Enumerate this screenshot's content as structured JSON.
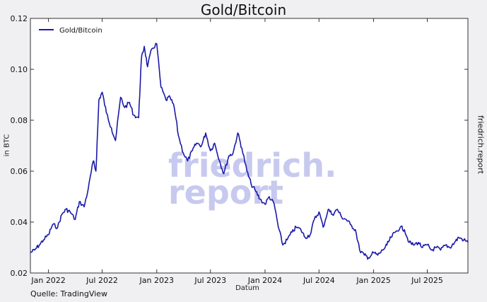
{
  "title": "Gold/Bitcoin",
  "source": "Quelle: TradingView",
  "side_brand": "friedrich.report",
  "watermark": [
    "friedrich.",
    "report"
  ],
  "colors": {
    "line": "#1a1aa8",
    "background": "#f0f0f3",
    "plot_background": "#ffffff",
    "watermark": "#c7c9ef"
  },
  "chart_data": {
    "type": "line",
    "title": "Gold/Bitcoin",
    "xlabel": "Datum",
    "ylabel": "in BTC",
    "ylim": [
      0.02,
      0.12
    ],
    "yticks": [
      0.02,
      0.04,
      0.06,
      0.08,
      0.1,
      0.12
    ],
    "ytick_labels": [
      "0.02",
      "0.04",
      "0.06",
      "0.08",
      "0.10",
      "0.12"
    ],
    "xlim": [
      "2021-11-01",
      "2025-11-15"
    ],
    "xticks": [
      "2022-01-01",
      "2022-07-01",
      "2023-01-01",
      "2023-07-01",
      "2024-01-01",
      "2024-07-01",
      "2025-01-01",
      "2025-07-01"
    ],
    "xtick_labels": [
      "Jan 2022",
      "Jul 2022",
      "Jan 2023",
      "Jul 2023",
      "Jan 2024",
      "Jul 2024",
      "Jan 2025",
      "Jul 2025"
    ],
    "legend_position": "top-left",
    "grid": false,
    "series": [
      {
        "name": "Gold/Bitcoin",
        "color": "#1a1aa8",
        "points": [
          [
            "2021-11-01",
            0.028
          ],
          [
            "2021-11-15",
            0.029
          ],
          [
            "2021-12-01",
            0.031
          ],
          [
            "2021-12-15",
            0.033
          ],
          [
            "2022-01-01",
            0.035
          ],
          [
            "2022-01-15",
            0.039
          ],
          [
            "2022-02-01",
            0.038
          ],
          [
            "2022-02-15",
            0.043
          ],
          [
            "2022-03-01",
            0.045
          ],
          [
            "2022-03-15",
            0.044
          ],
          [
            "2022-04-01",
            0.041
          ],
          [
            "2022-04-15",
            0.048
          ],
          [
            "2022-05-01",
            0.046
          ],
          [
            "2022-05-15",
            0.053
          ],
          [
            "2022-06-01",
            0.064
          ],
          [
            "2022-06-10",
            0.06
          ],
          [
            "2022-06-20",
            0.088
          ],
          [
            "2022-07-01",
            0.091
          ],
          [
            "2022-07-15",
            0.083
          ],
          [
            "2022-08-01",
            0.077
          ],
          [
            "2022-08-15",
            0.072
          ],
          [
            "2022-09-01",
            0.089
          ],
          [
            "2022-09-15",
            0.085
          ],
          [
            "2022-10-01",
            0.087
          ],
          [
            "2022-10-15",
            0.082
          ],
          [
            "2022-11-01",
            0.081
          ],
          [
            "2022-11-10",
            0.104
          ],
          [
            "2022-11-20",
            0.109
          ],
          [
            "2022-12-01",
            0.101
          ],
          [
            "2022-12-15",
            0.108
          ],
          [
            "2023-01-01",
            0.11
          ],
          [
            "2023-01-15",
            0.093
          ],
          [
            "2023-02-01",
            0.088
          ],
          [
            "2023-02-15",
            0.089
          ],
          [
            "2023-03-01",
            0.085
          ],
          [
            "2023-03-15",
            0.074
          ],
          [
            "2023-04-01",
            0.067
          ],
          [
            "2023-04-15",
            0.064
          ],
          [
            "2023-05-01",
            0.068
          ],
          [
            "2023-05-15",
            0.071
          ],
          [
            "2023-06-01",
            0.07
          ],
          [
            "2023-06-15",
            0.075
          ],
          [
            "2023-07-01",
            0.068
          ],
          [
            "2023-07-15",
            0.071
          ],
          [
            "2023-08-01",
            0.064
          ],
          [
            "2023-08-15",
            0.059
          ],
          [
            "2023-09-01",
            0.066
          ],
          [
            "2023-09-15",
            0.067
          ],
          [
            "2023-10-01",
            0.075
          ],
          [
            "2023-10-15",
            0.069
          ],
          [
            "2023-11-01",
            0.06
          ],
          [
            "2023-11-15",
            0.055
          ],
          [
            "2023-12-01",
            0.052
          ],
          [
            "2023-12-15",
            0.049
          ],
          [
            "2024-01-01",
            0.047
          ],
          [
            "2024-01-15",
            0.05
          ],
          [
            "2024-02-01",
            0.047
          ],
          [
            "2024-02-15",
            0.038
          ],
          [
            "2024-03-01",
            0.031
          ],
          [
            "2024-03-15",
            0.033
          ],
          [
            "2024-04-01",
            0.036
          ],
          [
            "2024-04-15",
            0.038
          ],
          [
            "2024-05-01",
            0.037
          ],
          [
            "2024-05-15",
            0.034
          ],
          [
            "2024-06-01",
            0.035
          ],
          [
            "2024-06-15",
            0.041
          ],
          [
            "2024-07-01",
            0.044
          ],
          [
            "2024-07-15",
            0.038
          ],
          [
            "2024-08-01",
            0.045
          ],
          [
            "2024-08-15",
            0.043
          ],
          [
            "2024-09-01",
            0.045
          ],
          [
            "2024-09-15",
            0.042
          ],
          [
            "2024-10-01",
            0.041
          ],
          [
            "2024-10-15",
            0.039
          ],
          [
            "2024-11-01",
            0.037
          ],
          [
            "2024-11-15",
            0.029
          ],
          [
            "2024-12-01",
            0.027
          ],
          [
            "2024-12-15",
            0.026
          ],
          [
            "2025-01-01",
            0.028
          ],
          [
            "2025-01-15",
            0.027
          ],
          [
            "2025-02-01",
            0.029
          ],
          [
            "2025-02-15",
            0.031
          ],
          [
            "2025-03-01",
            0.034
          ],
          [
            "2025-03-15",
            0.036
          ],
          [
            "2025-04-01",
            0.038
          ],
          [
            "2025-04-15",
            0.037
          ],
          [
            "2025-05-01",
            0.032
          ],
          [
            "2025-05-15",
            0.031
          ],
          [
            "2025-06-01",
            0.032
          ],
          [
            "2025-06-15",
            0.03
          ],
          [
            "2025-07-01",
            0.031
          ],
          [
            "2025-07-15",
            0.029
          ],
          [
            "2025-08-01",
            0.03
          ],
          [
            "2025-08-15",
            0.029
          ],
          [
            "2025-09-01",
            0.031
          ],
          [
            "2025-09-15",
            0.03
          ],
          [
            "2025-10-01",
            0.032
          ],
          [
            "2025-10-15",
            0.034
          ],
          [
            "2025-11-01",
            0.033
          ],
          [
            "2025-11-15",
            0.032
          ]
        ]
      }
    ]
  }
}
